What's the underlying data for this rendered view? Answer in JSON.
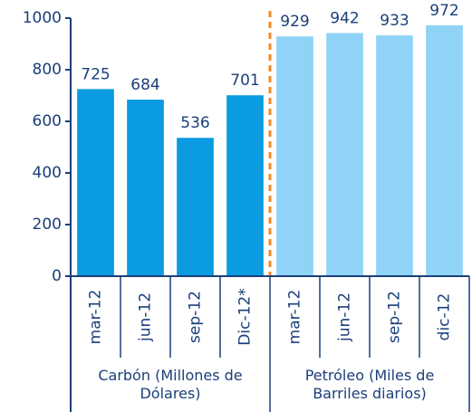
{
  "chart_data": {
    "type": "bar",
    "groups": [
      {
        "label": "Carbón (Millones de Dólares)",
        "color": "#0a9be0",
        "categories": [
          "mar-12",
          "jun-12",
          "sep-12",
          "Dic-12*"
        ],
        "values": [
          725,
          684,
          536,
          701
        ]
      },
      {
        "label": "Petróleo (Miles de Barriles diarios)",
        "color": "#8fd3f6",
        "categories": [
          "mar-12",
          "jun-12",
          "sep-12",
          "dic-12"
        ],
        "values": [
          929,
          942,
          933,
          972
        ]
      }
    ],
    "divider_color": "#f08a24",
    "ylim": [
      0,
      1000
    ],
    "yticks": [
      0,
      200,
      400,
      600,
      800,
      1000
    ]
  }
}
